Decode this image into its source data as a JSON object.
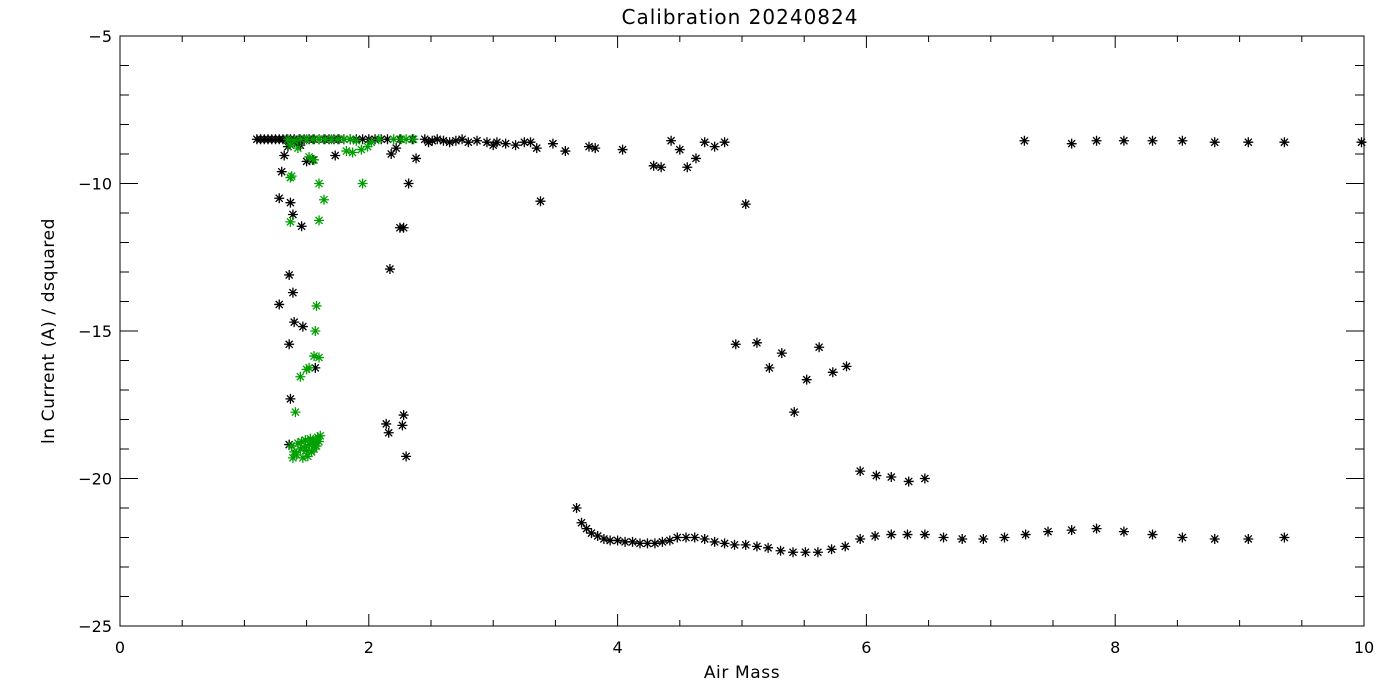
{
  "chart_data": {
    "type": "scatter",
    "title": "Calibration 20240824",
    "xlabel": "Air Mass",
    "ylabel": "ln Current (A) / dsquared",
    "xlim": [
      0,
      10
    ],
    "ylim": [
      -25,
      -5
    ],
    "xticks": [
      0,
      2,
      4,
      6,
      8,
      10
    ],
    "yticks": [
      -25,
      -20,
      -15,
      -10,
      -5
    ],
    "grid": false,
    "legend": "none",
    "marker": "asterisk",
    "series": [
      {
        "color": "#000000",
        "points": [
          [
            1.1,
            -8.5
          ],
          [
            1.13,
            -8.5
          ],
          [
            1.16,
            -8.5
          ],
          [
            1.19,
            -8.5
          ],
          [
            1.22,
            -8.5
          ],
          [
            1.25,
            -8.5
          ],
          [
            1.28,
            -8.5
          ],
          [
            1.31,
            -8.5
          ],
          [
            1.34,
            -8.5
          ],
          [
            1.37,
            -8.5
          ],
          [
            1.4,
            -8.5
          ],
          [
            1.44,
            -8.5
          ],
          [
            1.48,
            -8.5
          ],
          [
            1.52,
            -8.5
          ],
          [
            1.56,
            -8.5
          ],
          [
            1.6,
            -8.5
          ],
          [
            1.64,
            -8.5
          ],
          [
            1.68,
            -8.5
          ],
          [
            1.72,
            -8.5
          ],
          [
            1.76,
            -8.5
          ],
          [
            1.8,
            -8.5
          ],
          [
            1.85,
            -8.5
          ],
          [
            1.9,
            -8.5
          ],
          [
            1.95,
            -8.5
          ],
          [
            2.0,
            -8.5
          ],
          [
            2.05,
            -8.5
          ],
          [
            2.1,
            -8.5
          ],
          [
            2.15,
            -8.5
          ],
          [
            2.25,
            -8.5
          ],
          [
            2.35,
            -8.5
          ],
          [
            2.45,
            -8.5
          ],
          [
            2.48,
            -8.6
          ],
          [
            2.51,
            -8.55
          ],
          [
            2.55,
            -8.5
          ],
          [
            2.6,
            -8.55
          ],
          [
            2.65,
            -8.6
          ],
          [
            2.7,
            -8.55
          ],
          [
            2.75,
            -8.5
          ],
          [
            2.8,
            -8.6
          ],
          [
            2.87,
            -8.55
          ],
          [
            2.95,
            -8.6
          ],
          [
            3.0,
            -8.7
          ],
          [
            3.03,
            -8.6
          ],
          [
            3.1,
            -8.65
          ],
          [
            3.18,
            -8.7
          ],
          [
            3.25,
            -8.6
          ],
          [
            3.3,
            -8.6
          ],
          [
            3.35,
            -8.8
          ],
          [
            3.48,
            -8.65
          ],
          [
            3.58,
            -8.9
          ],
          [
            3.77,
            -8.75
          ],
          [
            3.82,
            -8.8
          ],
          [
            4.04,
            -8.85
          ],
          [
            4.29,
            -9.4
          ],
          [
            4.35,
            -9.45
          ],
          [
            4.43,
            -8.55
          ],
          [
            4.5,
            -8.85
          ],
          [
            4.56,
            -9.45
          ],
          [
            4.63,
            -9.15
          ],
          [
            4.7,
            -8.6
          ],
          [
            4.78,
            -8.75
          ],
          [
            4.86,
            -8.6
          ],
          [
            1.3,
            -9.6
          ],
          [
            1.32,
            -9.05
          ],
          [
            1.35,
            -8.75
          ],
          [
            1.4,
            -8.6
          ],
          [
            1.45,
            -8.7
          ],
          [
            1.5,
            -9.25
          ],
          [
            1.55,
            -9.2
          ],
          [
            1.73,
            -9.05
          ],
          [
            1.28,
            -10.5
          ],
          [
            1.37,
            -10.65
          ],
          [
            1.39,
            -11.05
          ],
          [
            1.46,
            -11.45
          ],
          [
            2.25,
            -11.5
          ],
          [
            2.28,
            -11.5
          ],
          [
            2.32,
            -10.0
          ],
          [
            2.38,
            -9.15
          ],
          [
            2.18,
            -9.0
          ],
          [
            2.22,
            -8.8
          ],
          [
            3.38,
            -10.6
          ],
          [
            5.03,
            -10.7
          ],
          [
            1.28,
            -14.1
          ],
          [
            1.36,
            -13.1
          ],
          [
            1.39,
            -13.7
          ],
          [
            1.4,
            -14.7
          ],
          [
            1.47,
            -14.85
          ],
          [
            1.36,
            -15.45
          ],
          [
            1.57,
            -16.25
          ],
          [
            1.37,
            -17.3
          ],
          [
            1.36,
            -18.85
          ],
          [
            2.17,
            -12.9
          ],
          [
            2.14,
            -18.15
          ],
          [
            2.16,
            -18.45
          ],
          [
            2.27,
            -18.2
          ],
          [
            2.28,
            -17.85
          ],
          [
            2.3,
            -19.25
          ],
          [
            4.95,
            -15.45
          ],
          [
            5.12,
            -15.4
          ],
          [
            5.22,
            -16.25
          ],
          [
            5.32,
            -15.75
          ],
          [
            5.42,
            -17.75
          ],
          [
            5.52,
            -16.65
          ],
          [
            5.62,
            -15.55
          ],
          [
            5.73,
            -16.4
          ],
          [
            5.84,
            -16.2
          ],
          [
            5.95,
            -19.75
          ],
          [
            6.08,
            -19.9
          ],
          [
            6.2,
            -19.95
          ],
          [
            6.34,
            -20.1
          ],
          [
            6.47,
            -20.0
          ],
          [
            3.67,
            -21.0
          ],
          [
            3.71,
            -21.5
          ],
          [
            3.75,
            -21.7
          ],
          [
            3.79,
            -21.85
          ],
          [
            3.84,
            -21.95
          ],
          [
            3.89,
            -22.05
          ],
          [
            3.94,
            -22.1
          ],
          [
            4.0,
            -22.1
          ],
          [
            4.06,
            -22.15
          ],
          [
            4.12,
            -22.15
          ],
          [
            4.18,
            -22.2
          ],
          [
            4.24,
            -22.2
          ],
          [
            4.3,
            -22.2
          ],
          [
            4.36,
            -22.15
          ],
          [
            4.42,
            -22.1
          ],
          [
            4.48,
            -22.0
          ],
          [
            4.55,
            -22.0
          ],
          [
            4.62,
            -22.0
          ],
          [
            4.7,
            -22.05
          ],
          [
            4.78,
            -22.15
          ],
          [
            4.86,
            -22.2
          ],
          [
            4.94,
            -22.25
          ],
          [
            5.03,
            -22.25
          ],
          [
            5.12,
            -22.3
          ],
          [
            5.21,
            -22.35
          ],
          [
            5.31,
            -22.45
          ],
          [
            5.41,
            -22.5
          ],
          [
            5.51,
            -22.5
          ],
          [
            5.61,
            -22.5
          ],
          [
            5.72,
            -22.4
          ],
          [
            5.83,
            -22.3
          ],
          [
            5.95,
            -22.05
          ],
          [
            6.07,
            -21.95
          ],
          [
            6.2,
            -21.9
          ],
          [
            6.33,
            -21.9
          ],
          [
            6.47,
            -21.9
          ],
          [
            6.62,
            -22.0
          ],
          [
            6.77,
            -22.05
          ],
          [
            6.94,
            -22.05
          ],
          [
            7.11,
            -22.0
          ],
          [
            7.28,
            -21.9
          ],
          [
            7.46,
            -21.8
          ],
          [
            7.65,
            -21.75
          ],
          [
            7.85,
            -21.7
          ],
          [
            8.07,
            -21.8
          ],
          [
            8.3,
            -21.9
          ],
          [
            8.54,
            -22.0
          ],
          [
            8.8,
            -22.05
          ],
          [
            9.07,
            -22.05
          ],
          [
            9.36,
            -22.0
          ],
          [
            7.27,
            -8.55
          ],
          [
            7.65,
            -8.65
          ],
          [
            7.85,
            -8.55
          ],
          [
            8.07,
            -8.55
          ],
          [
            8.3,
            -8.55
          ],
          [
            8.54,
            -8.55
          ],
          [
            8.8,
            -8.6
          ],
          [
            9.07,
            -8.6
          ],
          [
            9.36,
            -8.6
          ],
          [
            9.98,
            -8.6
          ]
        ]
      },
      {
        "color": "#00a000",
        "points": [
          [
            1.35,
            -8.5
          ],
          [
            1.4,
            -8.55
          ],
          [
            1.45,
            -8.5
          ],
          [
            1.5,
            -8.5
          ],
          [
            1.55,
            -8.5
          ],
          [
            1.6,
            -8.5
          ],
          [
            1.65,
            -8.5
          ],
          [
            1.7,
            -8.5
          ],
          [
            1.75,
            -8.5
          ],
          [
            1.8,
            -8.5
          ],
          [
            1.85,
            -8.5
          ],
          [
            1.9,
            -8.55
          ],
          [
            2.02,
            -8.6
          ],
          [
            2.08,
            -8.5
          ],
          [
            2.2,
            -8.5
          ],
          [
            2.26,
            -8.5
          ],
          [
            2.3,
            -8.5
          ],
          [
            2.36,
            -8.5
          ],
          [
            1.37,
            -8.7
          ],
          [
            1.43,
            -8.8
          ],
          [
            1.52,
            -9.1
          ],
          [
            1.56,
            -9.2
          ],
          [
            1.82,
            -8.9
          ],
          [
            1.87,
            -8.95
          ],
          [
            1.94,
            -8.85
          ],
          [
            1.99,
            -8.75
          ],
          [
            1.37,
            -9.8
          ],
          [
            1.38,
            -9.75
          ],
          [
            1.6,
            -10.0
          ],
          [
            1.95,
            -10.0
          ],
          [
            1.64,
            -10.55
          ],
          [
            1.37,
            -11.3
          ],
          [
            1.6,
            -11.25
          ],
          [
            1.58,
            -14.15
          ],
          [
            1.57,
            -15.0
          ],
          [
            1.56,
            -15.85
          ],
          [
            1.6,
            -15.9
          ],
          [
            1.5,
            -16.3
          ],
          [
            1.52,
            -16.25
          ],
          [
            1.45,
            -16.55
          ],
          [
            1.41,
            -17.75
          ],
          [
            1.38,
            -18.9
          ],
          [
            1.4,
            -19.1
          ],
          [
            1.42,
            -19.2
          ],
          [
            1.43,
            -18.8
          ],
          [
            1.45,
            -19.0
          ],
          [
            1.46,
            -18.75
          ],
          [
            1.47,
            -19.3
          ],
          [
            1.48,
            -18.95
          ],
          [
            1.49,
            -18.7
          ],
          [
            1.5,
            -19.05
          ],
          [
            1.51,
            -19.25
          ],
          [
            1.52,
            -18.85
          ],
          [
            1.53,
            -18.65
          ],
          [
            1.54,
            -19.1
          ],
          [
            1.55,
            -18.8
          ],
          [
            1.56,
            -19.0
          ],
          [
            1.57,
            -18.7
          ],
          [
            1.58,
            -18.9
          ],
          [
            1.59,
            -18.6
          ],
          [
            1.6,
            -18.75
          ],
          [
            1.61,
            -18.55
          ],
          [
            1.39,
            -19.3
          ]
        ]
      }
    ]
  }
}
